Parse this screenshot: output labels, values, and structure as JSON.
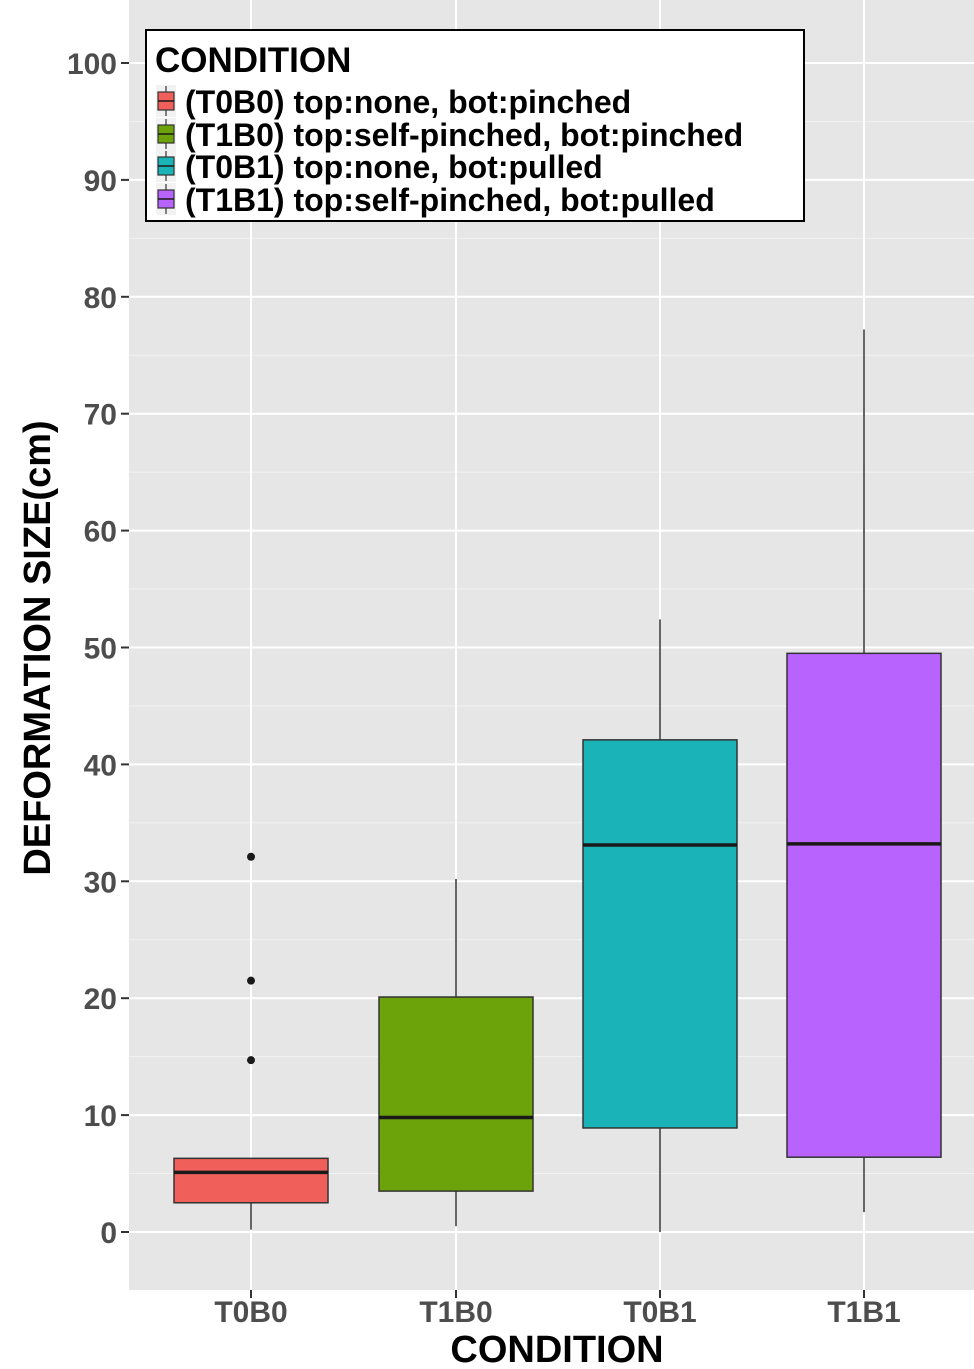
{
  "chart_data": {
    "type": "box",
    "xlabel": "CONDITION",
    "ylabel": "DEFORMATION SIZE(cm)",
    "categories": [
      "T0B0",
      "T1B0",
      "T0B1",
      "T1B1"
    ],
    "ylim": [
      -5,
      105
    ],
    "yticks": [
      0,
      10,
      20,
      30,
      40,
      50,
      60,
      70,
      80,
      90,
      100
    ],
    "grid": true,
    "legend": {
      "title": "CONDITION",
      "placement": "top-left",
      "entries": [
        "(T0B0) top:none, bot:pinched",
        "(T1B0) top:self-pinched, bot:pinched",
        "(T0B1) top:none, bot:pulled",
        "(T1B1) top:self-pinched, bot:pulled"
      ]
    },
    "series": [
      {
        "category": "T0B0",
        "color": "#F05F5A",
        "whisker_low": 0.2,
        "q1": 2.5,
        "median": 5.1,
        "q3": 6.3,
        "whisker_high": 6.3,
        "outliers": [
          14.7,
          21.5,
          32.1
        ]
      },
      {
        "category": "T1B0",
        "color": "#6DA30A",
        "whisker_low": 0.5,
        "q1": 3.5,
        "median": 9.8,
        "q3": 20.1,
        "whisker_high": 30.2,
        "outliers": []
      },
      {
        "category": "T0B1",
        "color": "#1AB3B7",
        "whisker_low": 0.0,
        "q1": 8.9,
        "median": 33.1,
        "q3": 42.1,
        "whisker_high": 52.4,
        "outliers": []
      },
      {
        "category": "T1B1",
        "color": "#B863FD",
        "whisker_low": 1.7,
        "q1": 6.4,
        "median": 33.2,
        "q3": 49.5,
        "whisker_high": 77.2,
        "outliers": []
      }
    ]
  }
}
